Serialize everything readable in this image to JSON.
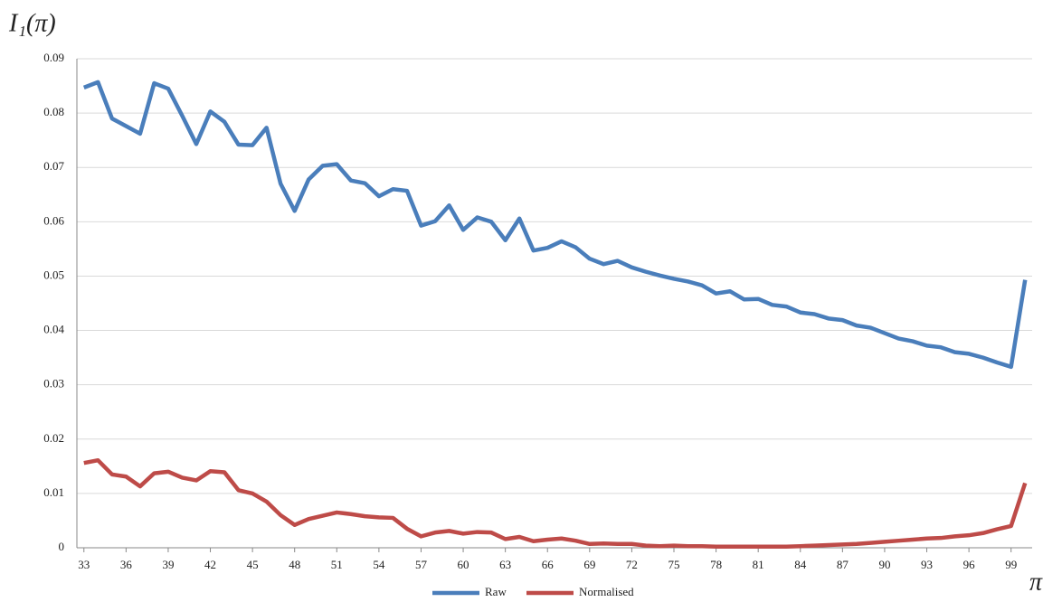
{
  "chart_data": {
    "type": "line",
    "ylabel": "I₁(π)",
    "xlabel": "π",
    "x": [
      33,
      34,
      35,
      36,
      37,
      38,
      39,
      40,
      41,
      42,
      43,
      44,
      45,
      46,
      47,
      48,
      49,
      50,
      51,
      52,
      53,
      54,
      55,
      56,
      57,
      58,
      59,
      60,
      61,
      62,
      63,
      64,
      65,
      66,
      67,
      68,
      69,
      70,
      71,
      72,
      73,
      74,
      75,
      76,
      77,
      78,
      79,
      80,
      81,
      82,
      83,
      84,
      85,
      86,
      87,
      88,
      89,
      90,
      91,
      92,
      93,
      94,
      95,
      96,
      97,
      98,
      99,
      100
    ],
    "series": [
      {
        "name": "Raw",
        "color": "#4a7ebb",
        "values": [
          0.0847,
          0.0857,
          0.079,
          0.0776,
          0.0762,
          0.0855,
          0.0845,
          0.0795,
          0.0743,
          0.0803,
          0.0784,
          0.0742,
          0.0741,
          0.0773,
          0.067,
          0.062,
          0.0678,
          0.0703,
          0.0706,
          0.0676,
          0.0671,
          0.0647,
          0.066,
          0.0657,
          0.0593,
          0.0601,
          0.063,
          0.0585,
          0.0608,
          0.06,
          0.0566,
          0.0606,
          0.0547,
          0.0552,
          0.0564,
          0.0553,
          0.0532,
          0.0522,
          0.0528,
          0.0516,
          0.0508,
          0.0501,
          0.0495,
          0.049,
          0.0483,
          0.0468,
          0.0472,
          0.0457,
          0.0458,
          0.0447,
          0.0444,
          0.0433,
          0.043,
          0.0422,
          0.0419,
          0.0409,
          0.0405,
          0.0395,
          0.0385,
          0.038,
          0.0372,
          0.0369,
          0.036,
          0.0357,
          0.035,
          0.0341,
          0.0333,
          0.0493
        ]
      },
      {
        "name": "Normalised",
        "color": "#be4b48",
        "values": [
          0.0156,
          0.0161,
          0.0135,
          0.0131,
          0.0113,
          0.0137,
          0.014,
          0.0129,
          0.0124,
          0.0141,
          0.0139,
          0.0106,
          0.01,
          0.0085,
          0.006,
          0.0042,
          0.0053,
          0.0059,
          0.0065,
          0.0062,
          0.0058,
          0.0056,
          0.0055,
          0.0035,
          0.0021,
          0.0028,
          0.0031,
          0.0026,
          0.0029,
          0.0028,
          0.0016,
          0.002,
          0.0012,
          0.0015,
          0.0017,
          0.0013,
          0.0007,
          0.0008,
          0.0007,
          0.0007,
          0.0004,
          0.0003,
          0.0004,
          0.0003,
          0.0003,
          0.0002,
          0.0002,
          0.0002,
          0.0002,
          0.0002,
          0.0002,
          0.0003,
          0.0004,
          0.0005,
          0.0006,
          0.0007,
          0.0009,
          0.0011,
          0.0013,
          0.0015,
          0.0017,
          0.0018,
          0.0021,
          0.0023,
          0.0027,
          0.0034,
          0.004,
          0.0119
        ]
      }
    ],
    "xlim": [
      32.5,
      100.5
    ],
    "xticks": [
      33,
      36,
      39,
      42,
      45,
      48,
      51,
      54,
      57,
      60,
      63,
      66,
      69,
      72,
      75,
      78,
      81,
      84,
      87,
      90,
      93,
      96,
      99
    ],
    "ylim": [
      0,
      0.09
    ],
    "yticks": [
      0,
      0.01,
      0.02,
      0.03,
      0.04,
      0.05,
      0.06,
      0.07,
      0.08,
      0.09
    ],
    "grid": true,
    "legend": "bottom"
  }
}
